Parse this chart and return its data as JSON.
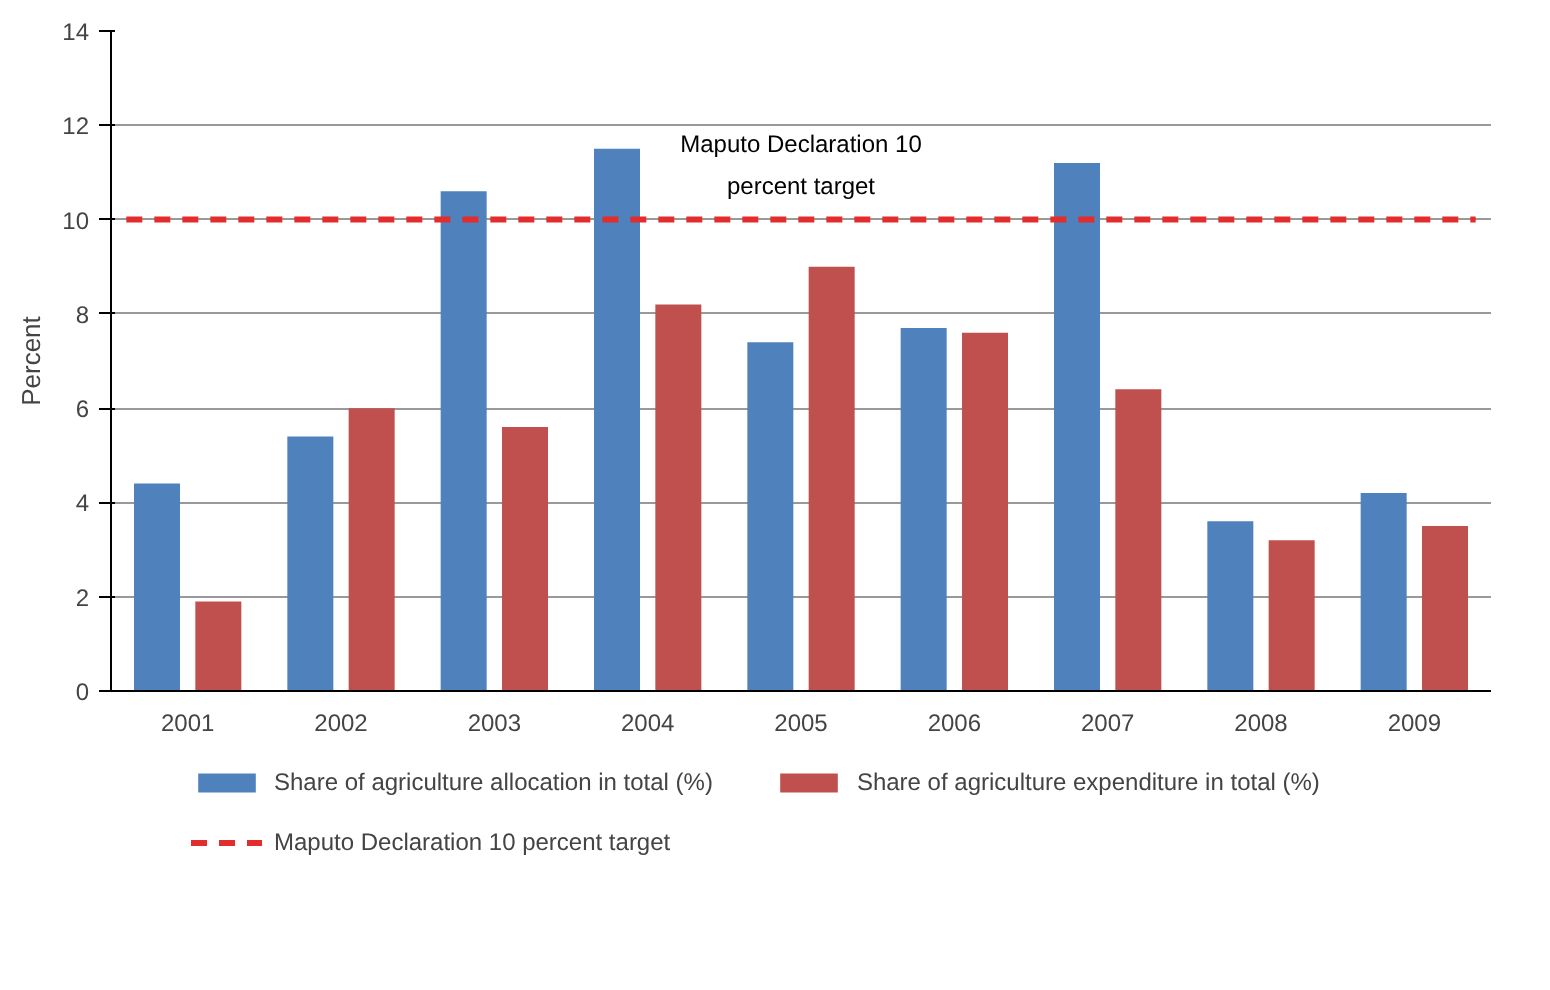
{
  "chart_data": {
    "type": "bar",
    "ylabel": "Percent",
    "categories": [
      "2001",
      "2002",
      "2003",
      "2004",
      "2005",
      "2006",
      "2007",
      "2008",
      "2009"
    ],
    "series": [
      {
        "name": "Share of agriculture allocation in total (%)",
        "color": "#4f81bd",
        "values": [
          4.4,
          5.4,
          10.6,
          11.5,
          7.4,
          7.7,
          11.2,
          3.6,
          4.2
        ]
      },
      {
        "name": "Share of agriculture expenditure in total (%)",
        "color": "#c0504d",
        "values": [
          1.9,
          6.0,
          5.6,
          8.2,
          9.0,
          7.6,
          6.4,
          3.2,
          3.5
        ]
      }
    ],
    "ylim": [
      0,
      14
    ],
    "yticks": [
      0,
      2,
      4,
      6,
      8,
      10,
      12,
      14
    ],
    "grid": "y",
    "legend": "bottom",
    "ref_lines": [
      {
        "axis": "y",
        "value": 10,
        "label": "Maputo Declaration 10 percent target",
        "color": "#e32c2c",
        "line_style": "dashed"
      }
    ],
    "annotations": [
      "Maputo Declaration 10 percent target"
    ]
  }
}
